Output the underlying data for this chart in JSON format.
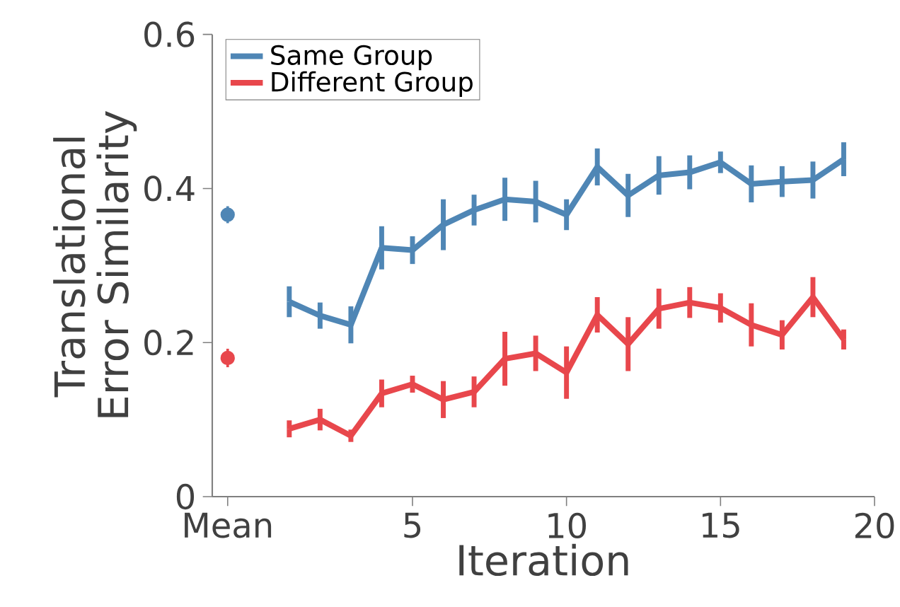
{
  "chart_data": {
    "type": "line",
    "xlabel": "Iteration",
    "ylabel": "Translational Error Similarity",
    "xlim": [
      -1.5,
      20
    ],
    "ylim": [
      0,
      0.6
    ],
    "xticks": [
      {
        "value": -1,
        "label": "Mean"
      },
      5,
      10,
      15,
      20
    ],
    "yticks": [
      0,
      0.2,
      0.4,
      0.6
    ],
    "legend": "top left",
    "grid": false,
    "series": [
      {
        "type": "scatter",
        "color": "#4f86b5",
        "marker": "circle",
        "x": [
          -1
        ],
        "values": [
          0.366
        ],
        "errors": [
          0.011
        ]
      },
      {
        "type": "scatter",
        "color": "#e8474c",
        "marker": "circle",
        "x": [
          -1
        ],
        "values": [
          0.18
        ],
        "errors": [
          0.012
        ]
      },
      {
        "name": "Same Group",
        "color": "#4f86b5",
        "x": [
          1,
          2,
          3,
          4,
          5,
          6,
          7,
          8,
          9,
          10,
          11,
          12,
          13,
          14,
          15,
          16,
          17,
          18,
          19
        ],
        "values": [
          0.253,
          0.235,
          0.223,
          0.323,
          0.32,
          0.353,
          0.372,
          0.386,
          0.383,
          0.366,
          0.428,
          0.391,
          0.417,
          0.421,
          0.434,
          0.406,
          0.409,
          0.411,
          0.438
        ],
        "errors": [
          0.02,
          0.017,
          0.024,
          0.028,
          0.018,
          0.033,
          0.02,
          0.028,
          0.027,
          0.02,
          0.024,
          0.028,
          0.025,
          0.022,
          0.014,
          0.024,
          0.02,
          0.024,
          0.022
        ]
      },
      {
        "name": "Different Group",
        "color": "#e8474c",
        "x": [
          1,
          2,
          3,
          4,
          5,
          6,
          7,
          8,
          9,
          10,
          11,
          12,
          13,
          14,
          15,
          16,
          17,
          18,
          19
        ],
        "values": [
          0.088,
          0.1,
          0.079,
          0.134,
          0.146,
          0.126,
          0.136,
          0.179,
          0.186,
          0.161,
          0.236,
          0.198,
          0.244,
          0.252,
          0.245,
          0.223,
          0.21,
          0.259,
          0.204
        ],
        "errors": [
          0.011,
          0.014,
          0.008,
          0.018,
          0.011,
          0.024,
          0.02,
          0.035,
          0.023,
          0.034,
          0.023,
          0.035,
          0.026,
          0.02,
          0.019,
          0.028,
          0.019,
          0.026,
          0.013
        ]
      }
    ]
  }
}
